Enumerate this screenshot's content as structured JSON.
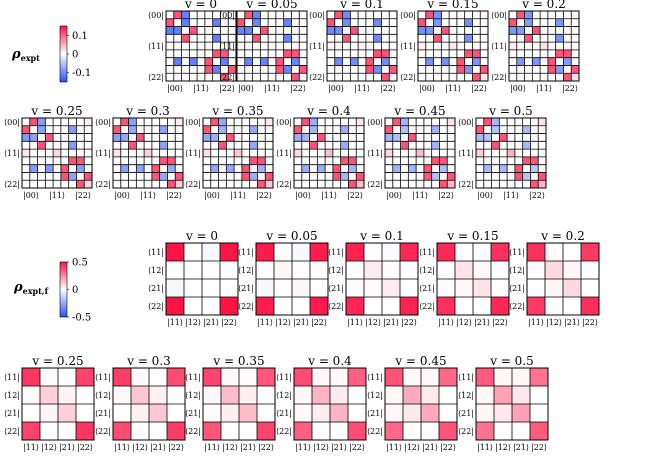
{
  "chart_data": [
    {
      "type": "heatmap",
      "label": "ρ_expt",
      "label_main": "ρ",
      "label_sub": "expt",
      "colorbar": {
        "min": -0.15,
        "max": 0.15,
        "ticks": [
          "0.1",
          "0",
          "-0.1"
        ],
        "tick_values": [
          0.1,
          0,
          -0.1
        ]
      },
      "size": 9,
      "row_labels": [
        "⟨00|",
        "⟨11|",
        "⟨22|"
      ],
      "row_label_indices": [
        0,
        4,
        8
      ],
      "col_labels": [
        "|00⟩",
        "|11⟩",
        "|22⟩"
      ],
      "col_label_indices": [
        0,
        4,
        8
      ],
      "panels": [
        {
          "title": "v = 0"
        },
        {
          "title": "v = 0.05"
        },
        {
          "title": "v = 0.1"
        },
        {
          "title": "v = 0.15"
        },
        {
          "title": "v = 0.2"
        },
        {
          "title": "v = 0.25"
        },
        {
          "title": "v = 0.3"
        },
        {
          "title": "v = 0.35"
        },
        {
          "title": "v = 0.4"
        },
        {
          "title": "v = 0.45"
        },
        {
          "title": "v = 0.5"
        }
      ],
      "v_values": [
        0,
        0.05,
        0.1,
        0.15,
        0.2,
        0.25,
        0.3,
        0.35,
        0.4,
        0.45,
        0.5
      ],
      "cells": [
        {
          "r": 0,
          "c": 1,
          "v0": 0.11,
          "v5": 0.11
        },
        {
          "r": 1,
          "c": 0,
          "v0": 0.11,
          "v5": 0.11
        },
        {
          "r": 2,
          "c": 0,
          "v0": -0.11,
          "v5": -0.06
        },
        {
          "r": 0,
          "c": 2,
          "v0": -0.11,
          "v5": -0.06
        },
        {
          "r": 2,
          "c": 1,
          "v0": -0.11,
          "v5": -0.05
        },
        {
          "r": 1,
          "c": 2,
          "v0": -0.11,
          "v5": -0.05
        },
        {
          "r": 2,
          "c": 3,
          "v0": 0.11,
          "v5": 0.11
        },
        {
          "r": 3,
          "c": 2,
          "v0": 0.11,
          "v5": 0.11
        },
        {
          "r": 6,
          "c": 1,
          "v0": -0.11,
          "v5": -0.06
        },
        {
          "r": 1,
          "c": 6,
          "v0": -0.11,
          "v5": -0.06
        },
        {
          "r": 6,
          "c": 3,
          "v0": -0.11,
          "v5": -0.06
        },
        {
          "r": 3,
          "c": 6,
          "v0": -0.11,
          "v5": -0.06
        },
        {
          "r": 5,
          "c": 6,
          "v0": 0.11,
          "v5": 0.11
        },
        {
          "r": 6,
          "c": 5,
          "v0": 0.11,
          "v5": 0.11
        },
        {
          "r": 5,
          "c": 7,
          "v0": 0.11,
          "v5": 0.11
        },
        {
          "r": 7,
          "c": 5,
          "v0": 0.11,
          "v5": 0.11
        },
        {
          "r": 6,
          "c": 7,
          "v0": -0.11,
          "v5": -0.05
        },
        {
          "r": 7,
          "c": 6,
          "v0": -0.11,
          "v5": -0.05
        },
        {
          "r": 7,
          "c": 8,
          "v0": 0.11,
          "v5": 0.11
        },
        {
          "r": 8,
          "c": 7,
          "v0": 0.11,
          "v5": 0.11
        },
        {
          "r": 4,
          "c": 4,
          "v0": 0,
          "v5": 0.05
        },
        {
          "r": 8,
          "c": 8,
          "v0": 0,
          "v5": 0.05
        },
        {
          "r": 4,
          "c": 0,
          "v0": 0,
          "v5": 0.03
        },
        {
          "r": 0,
          "c": 8,
          "v0": 0,
          "v5": 0.02
        }
      ]
    },
    {
      "type": "heatmap",
      "label": "ρ_expt,f",
      "label_main": "ρ",
      "label_sub": "expt,f",
      "colorbar": {
        "min": -0.5,
        "max": 0.5,
        "ticks": [
          "0.5",
          "0",
          "-0.5"
        ],
        "tick_values": [
          0.5,
          0,
          -0.5
        ]
      },
      "size": 4,
      "row_labels": [
        "⟨11|",
        "⟨12|",
        "⟨21|",
        "⟨22|"
      ],
      "col_labels": [
        "|11⟩",
        "|12⟩",
        "|21⟩",
        "|22⟩"
      ],
      "panels": [
        {
          "title": "v = 0"
        },
        {
          "title": "v = 0.05"
        },
        {
          "title": "v = 0.1"
        },
        {
          "title": "v = 0.15"
        },
        {
          "title": "v = 0.2"
        },
        {
          "title": "v = 0.25"
        },
        {
          "title": "v = 0.3"
        },
        {
          "title": "v = 0.35"
        },
        {
          "title": "v = 0.4"
        },
        {
          "title": "v = 0.45"
        },
        {
          "title": "v = 0.5"
        }
      ],
      "v_values": [
        0,
        0.05,
        0.1,
        0.15,
        0.2,
        0.25,
        0.3,
        0.35,
        0.4,
        0.45,
        0.5
      ],
      "cells": [
        {
          "r": 0,
          "c": 0,
          "v0": 0.5,
          "v5": 0.35
        },
        {
          "r": 0,
          "c": 3,
          "v0": 0.5,
          "v5": 0.3
        },
        {
          "r": 3,
          "c": 0,
          "v0": 0.5,
          "v5": 0.3
        },
        {
          "r": 3,
          "c": 3,
          "v0": 0.5,
          "v5": 0.35
        },
        {
          "r": 1,
          "c": 1,
          "v0": 0,
          "v5": 0.2
        },
        {
          "r": 2,
          "c": 2,
          "v0": 0,
          "v5": 0.2
        },
        {
          "r": 1,
          "c": 2,
          "v0": 0,
          "v5": 0.05
        },
        {
          "r": 2,
          "c": 1,
          "v0": 0,
          "v5": 0.05
        },
        {
          "r": 0,
          "c": 1,
          "v0": 0,
          "v5": 0.02
        },
        {
          "r": 1,
          "c": 0,
          "v0": 0,
          "v5": 0.02
        },
        {
          "r": 0,
          "c": 2,
          "v0": -0.02,
          "v5": 0.02
        },
        {
          "r": 2,
          "c": 0,
          "v0": -0.02,
          "v5": 0.02
        }
      ]
    }
  ]
}
